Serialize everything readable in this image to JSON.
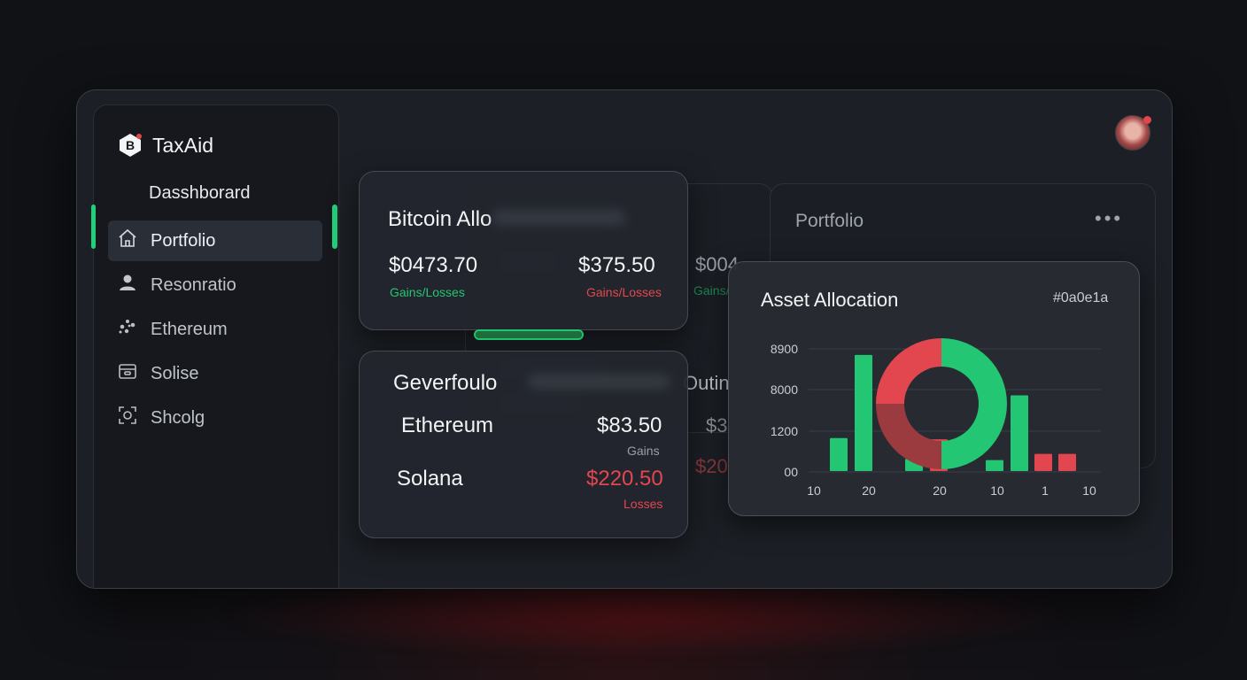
{
  "app": {
    "name": "TaxAid",
    "logo_glyph": "B"
  },
  "sidebar": {
    "title": "Dasshborard",
    "items": [
      {
        "label": "Portfolio",
        "icon": "home-icon",
        "active": true
      },
      {
        "label": "Resonratio",
        "icon": "user-icon",
        "active": false
      },
      {
        "label": "Ethereum",
        "icon": "ethereum-icon",
        "active": false
      },
      {
        "label": "Solise",
        "icon": "wallet-icon",
        "active": false
      },
      {
        "label": "Shcolg",
        "icon": "scan-icon",
        "active": false
      }
    ]
  },
  "bitcoin_card": {
    "title": "Bitcoin Allo",
    "left_value": "$0473.70",
    "left_label": "Gains/Losses",
    "right_value": "$375.50",
    "right_label": "Gains/Losses"
  },
  "ghost_card": {
    "value": "$004",
    "label": "Gains/L",
    "peek_text": "Outin",
    "peek_value_1": "$3",
    "peek_value_2": "$20"
  },
  "portfolio_panel": {
    "title": "Portfolio",
    "menu": "•••"
  },
  "gever_card": {
    "title": "Geverfoulo",
    "rows": [
      {
        "name": "Ethereum",
        "value": "$83.50",
        "label": "Gains",
        "type": "gain"
      },
      {
        "name": "Solana",
        "value": "$220.50",
        "label": "Losses",
        "type": "loss"
      }
    ]
  },
  "progress": {
    "fraction": 1.0
  },
  "asset_allocation": {
    "title": "Asset Allocation",
    "hex_label": "#0a0e1a"
  },
  "colors": {
    "green": "#22c673",
    "red": "#e2474f",
    "accent": "#21d07a"
  },
  "chart_data": {
    "type": "bar",
    "title": "Asset Allocation",
    "y_ticks": [
      "8900",
      "8000",
      "1200",
      "00"
    ],
    "x_ticks": [
      "10",
      "20",
      "20",
      "10",
      "1",
      "10"
    ],
    "bars": [
      {
        "value": 0.27,
        "color": "green"
      },
      {
        "value": 0.95,
        "color": "green"
      },
      {
        "value": 0.1,
        "color": "green"
      },
      {
        "value": 0.26,
        "color": "red"
      },
      {
        "value": 0.09,
        "color": "green"
      },
      {
        "value": 0.62,
        "color": "green"
      },
      {
        "value": 0.14,
        "color": "red"
      },
      {
        "value": 0.14,
        "color": "red"
      }
    ],
    "donut": [
      {
        "name": "green",
        "value": 0.5
      },
      {
        "name": "red-light",
        "value": 0.25
      },
      {
        "name": "red-dark",
        "value": 0.25
      }
    ]
  }
}
